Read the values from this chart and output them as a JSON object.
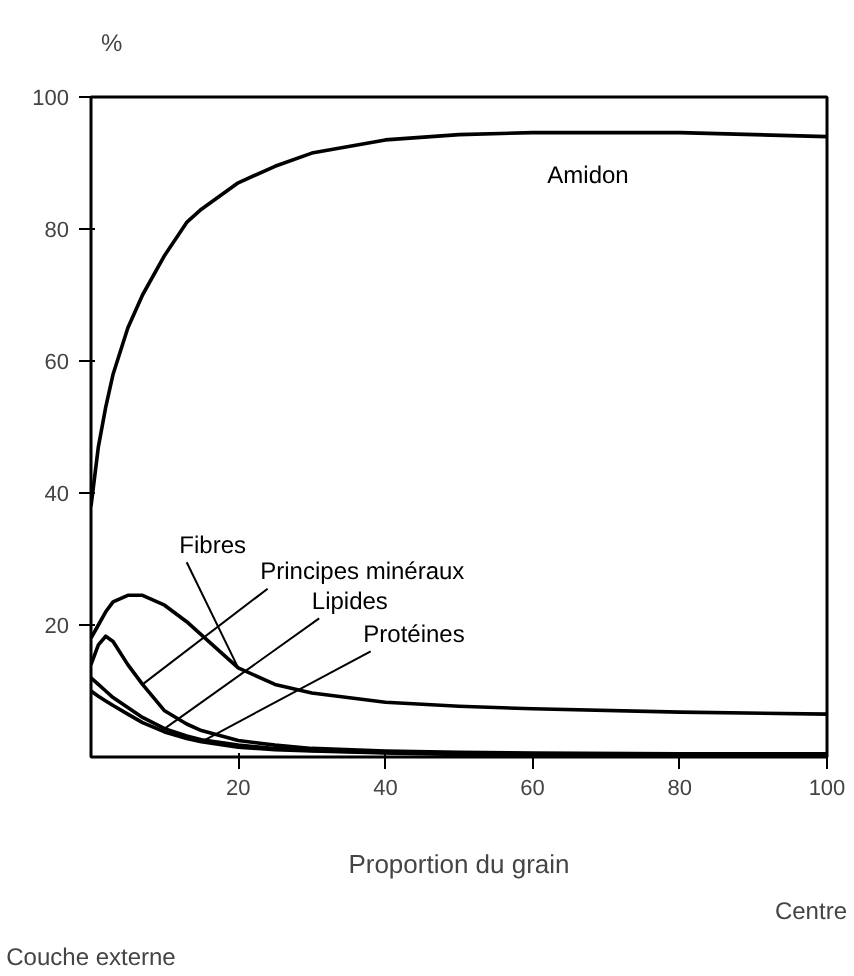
{
  "chart_data": {
    "type": "line",
    "xlabel": "Proportion du grain",
    "ylabel": "%",
    "x": [
      0,
      1,
      2,
      3,
      5,
      7,
      10,
      13,
      15,
      20,
      25,
      30,
      40,
      50,
      60,
      80,
      100
    ],
    "xlim": [
      0,
      100
    ],
    "ylim": [
      0,
      100
    ],
    "xticks": [
      20,
      40,
      60,
      80,
      100
    ],
    "yticks": [
      20,
      40,
      60,
      80,
      100
    ],
    "grid": false,
    "legend": false,
    "marker": "none",
    "line_style": "solid",
    "series": [
      {
        "name": "Amidon",
        "color": "#000000",
        "values": [
          38,
          47,
          53,
          58,
          65,
          70,
          76,
          81,
          83,
          87,
          89.5,
          91.5,
          93.5,
          94.3,
          94.6,
          94.6,
          94
        ]
      },
      {
        "name": "Fibres",
        "color": "#000000",
        "values": [
          18,
          20,
          22,
          23.5,
          24.5,
          24.5,
          23,
          20.5,
          18.5,
          13.5,
          11,
          9.7,
          8.3,
          7.7,
          7.3,
          6.8,
          6.5
        ]
      },
      {
        "name": "Principes minéraux",
        "color": "#000000",
        "values": [
          14,
          17,
          18.3,
          17.5,
          14,
          11,
          7,
          5,
          4,
          2.5,
          1.8,
          1.3,
          0.9,
          0.7,
          0.6,
          0.5,
          0.5
        ]
      },
      {
        "name": "Lipides",
        "color": "#000000",
        "values": [
          12,
          11,
          10,
          9,
          7.5,
          6,
          4.3,
          3.2,
          2.6,
          1.8,
          1.3,
          1,
          0.7,
          0.5,
          0.4,
          0.3,
          0.3
        ]
      },
      {
        "name": "Protéines",
        "color": "#000000",
        "values": [
          10,
          9.2,
          8.5,
          7.8,
          6.5,
          5.2,
          3.8,
          2.8,
          2.3,
          1.5,
          1.1,
          0.9,
          0.6,
          0.4,
          0.3,
          0.2,
          0.2
        ]
      }
    ],
    "annotations": [
      "Couche externe",
      "Centre"
    ]
  }
}
